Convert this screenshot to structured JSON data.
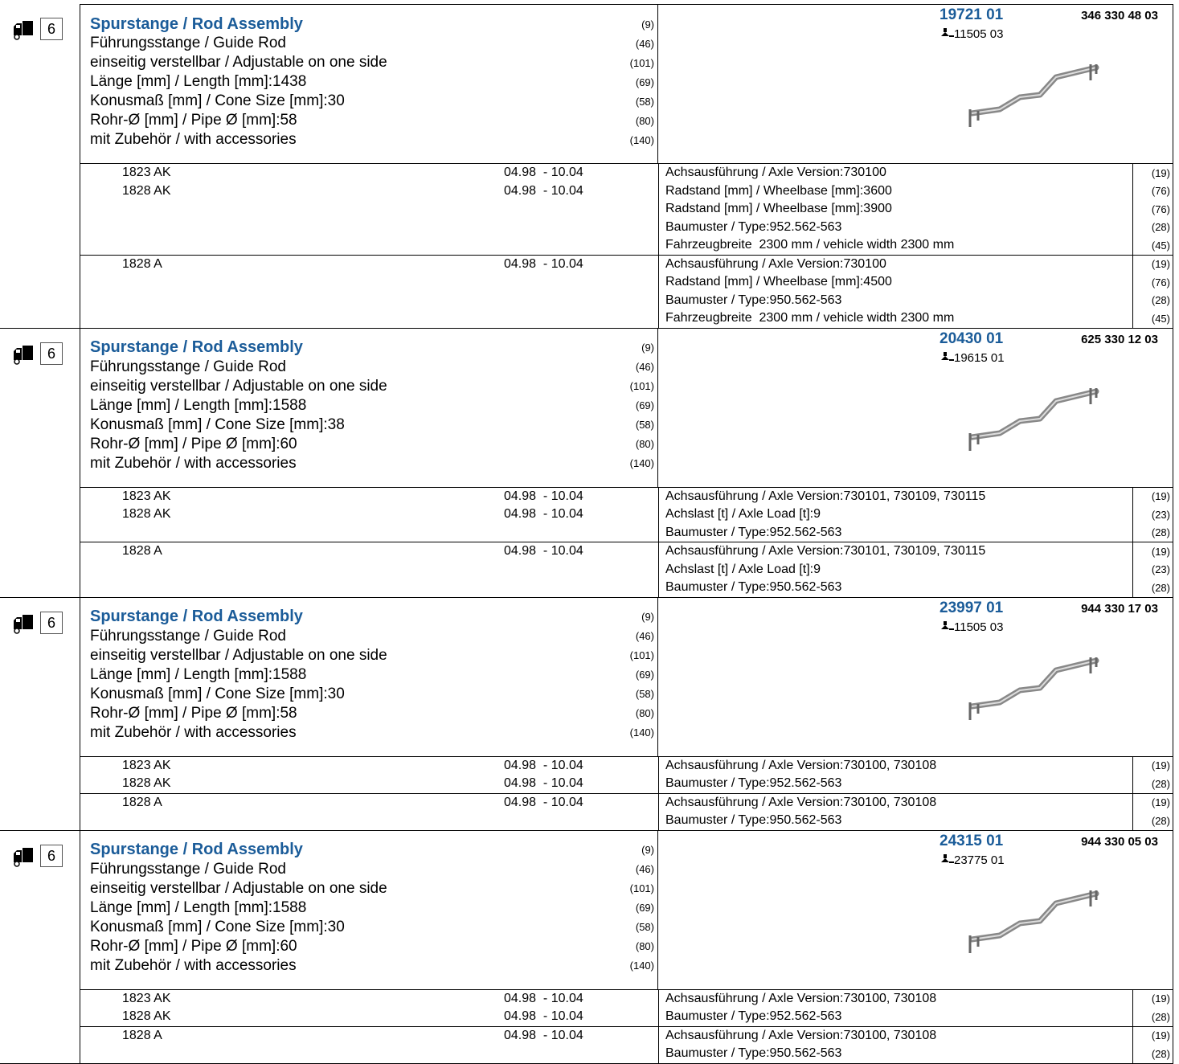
{
  "entries": [
    {
      "qty": "6",
      "title": "Spurstange / Rod Assembly",
      "title_code": "(9)",
      "specs": [
        {
          "text": "Führungsstange / Guide Rod",
          "code": "(46)"
        },
        {
          "text": "einseitig verstellbar / Adjustable on one side",
          "code": "(101)"
        },
        {
          "text": "Länge [mm] / Length [mm]:1438",
          "code": "(69)"
        },
        {
          "text": "Konusmaß [mm] / Cone Size [mm]:30",
          "code": "(58)"
        },
        {
          "text": "Rohr-Ø [mm] / Pipe Ø [mm]:58",
          "code": "(80)"
        },
        {
          "text": "mit Zubehör / with accessories",
          "code": "(140)"
        }
      ],
      "part_number": "19721 01",
      "oem_number": "346 330 48 03",
      "replaces": "11505 03",
      "groups": [
        {
          "vehicles": [
            {
              "model": "1823 AK",
              "dates": "04.98  - 10.04"
            },
            {
              "model": "1828 AK",
              "dates": "04.98  - 10.04"
            }
          ],
          "notes": [
            {
              "text": "Achsausführung / Axle Version:730100",
              "code": "(19)"
            },
            {
              "text": "Radstand [mm] / Wheelbase [mm]:3600",
              "code": "(76)"
            },
            {
              "text": "Radstand [mm] / Wheelbase [mm]:3900",
              "code": "(76)"
            },
            {
              "text": "Baumuster / Type:952.562-563",
              "code": "(28)"
            },
            {
              "text": "Fahrzeugbreite  2300 mm / vehicle width 2300 mm",
              "code": "(45)"
            }
          ]
        },
        {
          "vehicles": [
            {
              "model": "1828 A",
              "dates": "04.98  - 10.04"
            }
          ],
          "notes": [
            {
              "text": "Achsausführung / Axle Version:730100",
              "code": "(19)"
            },
            {
              "text": "Radstand [mm] / Wheelbase [mm]:4500",
              "code": "(76)"
            },
            {
              "text": "Baumuster / Type:950.562-563",
              "code": "(28)"
            },
            {
              "text": "Fahrzeugbreite  2300 mm / vehicle width 2300 mm",
              "code": "(45)"
            }
          ]
        }
      ]
    },
    {
      "qty": "6",
      "title": "Spurstange / Rod Assembly",
      "title_code": "(9)",
      "specs": [
        {
          "text": "Führungsstange / Guide Rod",
          "code": "(46)"
        },
        {
          "text": "einseitig verstellbar / Adjustable on one side",
          "code": "(101)"
        },
        {
          "text": "Länge [mm] / Length [mm]:1588",
          "code": "(69)"
        },
        {
          "text": "Konusmaß [mm] / Cone Size [mm]:38",
          "code": "(58)"
        },
        {
          "text": "Rohr-Ø [mm] / Pipe Ø [mm]:60",
          "code": "(80)"
        },
        {
          "text": "mit Zubehör / with accessories",
          "code": "(140)"
        }
      ],
      "part_number": "20430 01",
      "oem_number": "625 330 12 03",
      "replaces": "19615 01",
      "groups": [
        {
          "vehicles": [
            {
              "model": "1823 AK",
              "dates": "04.98  - 10.04"
            },
            {
              "model": "1828 AK",
              "dates": "04.98  - 10.04"
            }
          ],
          "notes": [
            {
              "text": "Achsausführung / Axle Version:730101, 730109, 730115",
              "code": "(19)"
            },
            {
              "text": "Achslast [t] / Axle Load [t]:9",
              "code": "(23)"
            },
            {
              "text": "Baumuster / Type:952.562-563",
              "code": "(28)"
            }
          ]
        },
        {
          "vehicles": [
            {
              "model": "1828 A",
              "dates": "04.98  - 10.04"
            }
          ],
          "notes": [
            {
              "text": "Achsausführung / Axle Version:730101, 730109, 730115",
              "code": "(19)"
            },
            {
              "text": "Achslast [t] / Axle Load [t]:9",
              "code": "(23)"
            },
            {
              "text": "Baumuster / Type:950.562-563",
              "code": "(28)"
            }
          ]
        }
      ]
    },
    {
      "qty": "6",
      "title": "Spurstange / Rod Assembly",
      "title_code": "(9)",
      "specs": [
        {
          "text": "Führungsstange / Guide Rod",
          "code": "(46)"
        },
        {
          "text": "einseitig verstellbar / Adjustable on one side",
          "code": "(101)"
        },
        {
          "text": "Länge [mm] / Length [mm]:1588",
          "code": "(69)"
        },
        {
          "text": "Konusmaß [mm] / Cone Size [mm]:30",
          "code": "(58)"
        },
        {
          "text": "Rohr-Ø [mm] / Pipe Ø [mm]:58",
          "code": "(80)"
        },
        {
          "text": "mit Zubehör / with accessories",
          "code": "(140)"
        }
      ],
      "part_number": "23997 01",
      "oem_number": "944 330 17 03",
      "replaces": "11505 03",
      "groups": [
        {
          "vehicles": [
            {
              "model": "1823 AK",
              "dates": "04.98  - 10.04"
            },
            {
              "model": "1828 AK",
              "dates": "04.98  - 10.04"
            }
          ],
          "notes": [
            {
              "text": "Achsausführung / Axle Version:730100, 730108",
              "code": "(19)"
            },
            {
              "text": "Baumuster / Type:952.562-563",
              "code": "(28)"
            }
          ]
        },
        {
          "vehicles": [
            {
              "model": "1828 A",
              "dates": "04.98  - 10.04"
            }
          ],
          "notes": [
            {
              "text": "Achsausführung / Axle Version:730100, 730108",
              "code": "(19)"
            },
            {
              "text": "Baumuster / Type:950.562-563",
              "code": "(28)"
            }
          ]
        }
      ]
    },
    {
      "qty": "6",
      "title": "Spurstange / Rod Assembly",
      "title_code": "(9)",
      "specs": [
        {
          "text": "Führungsstange / Guide Rod",
          "code": "(46)"
        },
        {
          "text": "einseitig verstellbar / Adjustable on one side",
          "code": "(101)"
        },
        {
          "text": "Länge [mm] / Length [mm]:1588",
          "code": "(69)"
        },
        {
          "text": "Konusmaß [mm] / Cone Size [mm]:30",
          "code": "(58)"
        },
        {
          "text": "Rohr-Ø [mm] / Pipe Ø [mm]:60",
          "code": "(80)"
        },
        {
          "text": "mit Zubehör / with accessories",
          "code": "(140)"
        }
      ],
      "part_number": "24315 01",
      "oem_number": "944 330 05 03",
      "replaces": "23775 01",
      "groups": [
        {
          "vehicles": [
            {
              "model": "1823 AK",
              "dates": "04.98  - 10.04"
            },
            {
              "model": "1828 AK",
              "dates": "04.98  - 10.04"
            }
          ],
          "notes": [
            {
              "text": "Achsausführung / Axle Version:730100, 730108",
              "code": "(19)"
            },
            {
              "text": "Baumuster / Type:952.562-563",
              "code": "(28)"
            }
          ]
        },
        {
          "vehicles": [
            {
              "model": "1828 A",
              "dates": "04.98  - 10.04"
            }
          ],
          "notes": [
            {
              "text": "Achsausführung / Axle Version:730100, 730108",
              "code": "(19)"
            },
            {
              "text": "Baumuster / Type:950.562-563",
              "code": "(28)"
            }
          ]
        }
      ]
    }
  ]
}
